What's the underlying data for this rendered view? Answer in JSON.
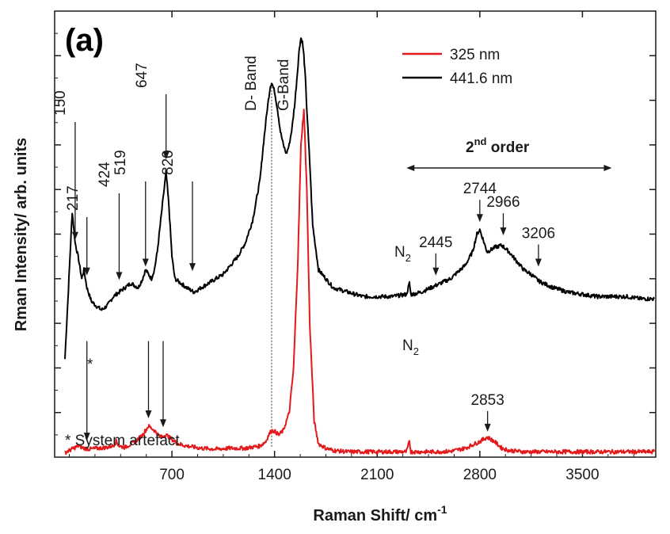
{
  "chart_data": {
    "type": "line",
    "panel_label": "(a)",
    "xlabel_main": "Raman Shift/ cm",
    "xlabel_sup": "-1",
    "ylabel": "Rman Intensity/ arb. units",
    "xlim": [
      -100,
      4000
    ],
    "ylim": [
      0,
      100
    ],
    "x_ticks": [
      700,
      1400,
      2100,
      2800,
      3500
    ],
    "x_tick_labels": [
      "700",
      "1400",
      "2100",
      "2800",
      "3500"
    ],
    "y_ticks": [
      10,
      20,
      30,
      40,
      50,
      60,
      70,
      80,
      90
    ],
    "y_tick_labels": [],
    "legend": [
      {
        "name": "325 nm",
        "color": "#e31a1c"
      },
      {
        "name": "441.6 nm",
        "color": "#000000"
      }
    ],
    "series": [
      {
        "name": "441.6 nm",
        "color": "#000000",
        "x": [
          -30,
          -10,
          5,
          20,
          40,
          60,
          85,
          100,
          120,
          150,
          180,
          220,
          260,
          300,
          340,
          380,
          420,
          470,
          500,
          520,
          540,
          560,
          580,
          600,
          620,
          640,
          660,
          680,
          700,
          720,
          760,
          800,
          850,
          900,
          950,
          1000,
          1050,
          1100,
          1150,
          1200,
          1250,
          1300,
          1330,
          1350,
          1370,
          1380,
          1400,
          1420,
          1440,
          1460,
          1480,
          1500,
          1520,
          1540,
          1560,
          1570,
          1580,
          1590,
          1600,
          1610,
          1620,
          1640,
          1660,
          1700,
          1800,
          1900,
          2000,
          2100,
          2200,
          2300,
          2320,
          2330,
          2340,
          2400,
          2500,
          2600,
          2700,
          2750,
          2780,
          2800,
          2820,
          2850,
          2900,
          2950,
          3000,
          3050,
          3100,
          3150,
          3200,
          3300,
          3400,
          3500,
          3600,
          3700,
          3800,
          3900,
          3990
        ],
        "y": [
          22,
          35,
          45,
          55,
          48,
          45,
          40,
          42,
          38,
          35,
          34,
          33,
          34,
          36,
          37,
          38,
          39,
          38,
          40,
          42,
          41,
          40,
          42,
          46,
          52,
          58,
          64,
          56,
          45,
          40,
          39,
          38,
          37,
          38,
          39,
          40,
          41,
          43,
          45,
          48,
          53,
          62,
          72,
          78,
          83,
          84,
          82,
          78,
          73,
          70,
          68,
          70,
          74,
          80,
          88,
          92,
          94,
          93,
          90,
          85,
          78,
          66,
          52,
          42,
          38,
          37,
          36,
          36,
          36,
          36.5,
          39,
          36.5,
          36.5,
          37,
          38.5,
          40,
          43,
          46,
          50,
          51,
          49,
          46,
          47,
          47.5,
          46,
          44,
          42,
          41,
          39.5,
          38,
          37,
          36.5,
          36,
          36,
          36,
          35.5,
          35.5
        ]
      },
      {
        "name": "325 nm",
        "color": "#e31a1c",
        "x": [
          -30,
          0,
          30,
          60,
          100,
          140,
          200,
          260,
          300,
          320,
          340,
          380,
          450,
          500,
          540,
          580,
          620,
          660,
          700,
          740,
          800,
          900,
          1000,
          1100,
          1200,
          1300,
          1340,
          1360,
          1380,
          1400,
          1430,
          1460,
          1500,
          1530,
          1560,
          1580,
          1600,
          1620,
          1640,
          1670,
          1700,
          1750,
          1800,
          1900,
          2000,
          2100,
          2200,
          2300,
          2320,
          2330,
          2340,
          2400,
          2500,
          2600,
          2700,
          2800,
          2850,
          2900,
          2950,
          3000,
          3100,
          3200,
          3400,
          3600,
          3800,
          3990
        ],
        "y": [
          1,
          1.5,
          2,
          2.5,
          2,
          1.8,
          2,
          2.2,
          2.6,
          3.5,
          2.5,
          2.2,
          3.5,
          5,
          7,
          6,
          4.5,
          5,
          4,
          3,
          2.5,
          2,
          1.8,
          2,
          2,
          2.5,
          3.5,
          5,
          6,
          5.8,
          5,
          6,
          10,
          20,
          45,
          70,
          78,
          60,
          30,
          8,
          3,
          2,
          1.5,
          1.2,
          1.2,
          1.2,
          1.2,
          1.2,
          3.5,
          1.2,
          1.2,
          1.2,
          1.2,
          1.3,
          2,
          3.5,
          4.5,
          3.5,
          2,
          1.5,
          1.2,
          1.2,
          1.2,
          1.2,
          1.2,
          1.2
        ]
      }
    ],
    "annotations": {
      "black": [
        {
          "label": "150",
          "x": 40,
          "tip": 48
        },
        {
          "label": "217",
          "x": 120,
          "tip": 40
        },
        {
          "label": "424",
          "x": 340,
          "tip": 39
        },
        {
          "label": "519",
          "x": 520,
          "tip": 42
        },
        {
          "label": "647",
          "x": 660,
          "tip": 66
        },
        {
          "label": "820",
          "x": 840,
          "tip": 41
        },
        {
          "label": "2445",
          "x": 2500,
          "tip": 40
        },
        {
          "label": "2744",
          "x": 2800,
          "tip": 52
        },
        {
          "label": "2966",
          "x": 2960,
          "tip": 49
        },
        {
          "label": "3206",
          "x": 3200,
          "tip": 42
        }
      ],
      "red": [
        {
          "label": "",
          "x": 120,
          "tip": 3
        },
        {
          "label": "",
          "x": 540,
          "tip": 8
        },
        {
          "label": "",
          "x": 640,
          "tip": 6
        },
        {
          "label": "2853",
          "x": 2853,
          "tip": 5
        }
      ],
      "n2_black": {
        "label": "N",
        "sub": "2"
      },
      "n2_red": {
        "label": "N",
        "sub": "2"
      },
      "asterisk": "*",
      "d_band": "D- Band",
      "g_band": "G-Band",
      "second_order_main": "2",
      "second_order_sup": "nd",
      "second_order_rest": " order",
      "second_order_range": [
        2300,
        3700
      ],
      "artefact_note": "* System artefact"
    }
  }
}
